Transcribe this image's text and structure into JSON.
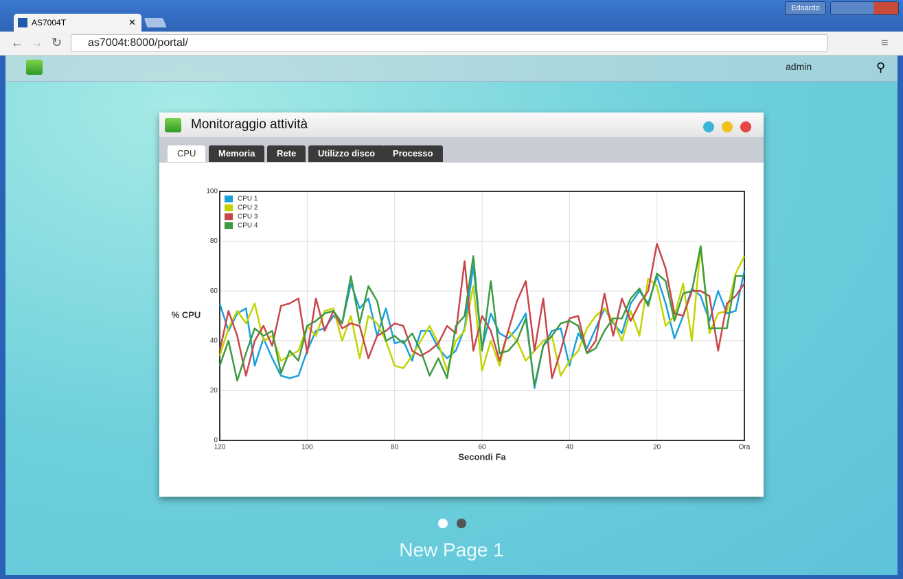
{
  "browser": {
    "tab_title": "AS7004T",
    "user": "Edoardo",
    "url": "as7004t:8000/portal/"
  },
  "portal": {
    "user": "admin",
    "page_title": "New Page 1"
  },
  "window": {
    "title": "Monitoraggio attività",
    "tabs": [
      "CPU",
      "Memoria",
      "Rete",
      "Utilizzo disco",
      "Processo"
    ]
  },
  "chart_data": {
    "type": "line",
    "x_label": "Secondi Fa",
    "y_label": "% CPU",
    "x": [
      120,
      118,
      116,
      114,
      112,
      110,
      108,
      106,
      104,
      102,
      100,
      98,
      96,
      94,
      92,
      90,
      88,
      86,
      84,
      82,
      80,
      78,
      76,
      74,
      72,
      70,
      68,
      66,
      64,
      62,
      60,
      58,
      56,
      54,
      52,
      50,
      48,
      46,
      44,
      42,
      40,
      38,
      36,
      34,
      32,
      30,
      28,
      26,
      24,
      22,
      20,
      18,
      16,
      14,
      12,
      10,
      8,
      6,
      4,
      2,
      0
    ],
    "xlim": [
      120,
      0
    ],
    "xticks": [
      120,
      100,
      80,
      60,
      40,
      20,
      {
        "value": 0,
        "label": "Ora"
      }
    ],
    "ylim": [
      0,
      100
    ],
    "yticks": [
      0,
      20,
      40,
      60,
      80,
      100
    ],
    "grid": true,
    "legend": "top-left",
    "series": [
      {
        "name": "CPU 1",
        "color": "#1aa0de",
        "values": [
          55,
          44,
          51,
          53,
          30,
          41,
          33,
          26,
          25,
          26,
          36,
          44,
          45,
          50,
          47,
          63,
          53,
          57,
          42,
          53,
          39,
          40,
          32,
          44,
          44,
          37,
          33,
          36,
          45,
          70,
          37,
          51,
          43,
          41,
          45,
          51,
          21,
          38,
          44,
          45,
          30,
          43,
          37,
          45,
          53,
          47,
          43,
          55,
          60,
          55,
          66,
          55,
          41,
          50,
          61,
          58,
          48,
          60,
          51,
          52,
          68
        ]
      },
      {
        "name": "CPU 2",
        "color": "#c3d400",
        "values": [
          34,
          45,
          52,
          47,
          55,
          40,
          42,
          32,
          34,
          36,
          46,
          42,
          52,
          53,
          40,
          50,
          33,
          50,
          47,
          40,
          30,
          29,
          34,
          40,
          46,
          39,
          28,
          40,
          44,
          62,
          28,
          40,
          30,
          44,
          40,
          32,
          36,
          40,
          42,
          26,
          32,
          36,
          45,
          50,
          53,
          48,
          40,
          52,
          42,
          65,
          62,
          46,
          50,
          63,
          40,
          78,
          43,
          51,
          52,
          67,
          74
        ]
      },
      {
        "name": "CPU 3",
        "color": "#c9464a",
        "values": [
          36,
          52,
          42,
          26,
          40,
          46,
          38,
          54,
          55,
          57,
          35,
          57,
          44,
          52,
          45,
          47,
          46,
          33,
          42,
          44,
          47,
          46,
          36,
          34,
          36,
          39,
          46,
          43,
          72,
          36,
          50,
          44,
          32,
          44,
          56,
          64,
          36,
          57,
          25,
          36,
          49,
          50,
          35,
          40,
          59,
          42,
          57,
          48,
          55,
          60,
          79,
          69,
          51,
          50,
          60,
          60,
          58,
          36,
          55,
          58,
          63
        ]
      },
      {
        "name": "CPU 4",
        "color": "#3e9b42",
        "values": [
          30,
          40,
          24,
          35,
          45,
          42,
          44,
          27,
          36,
          32,
          46,
          48,
          51,
          52,
          47,
          66,
          47,
          62,
          56,
          40,
          42,
          39,
          43,
          36,
          26,
          33,
          25,
          46,
          50,
          74,
          36,
          64,
          35,
          36,
          40,
          49,
          22,
          38,
          42,
          47,
          48,
          46,
          35,
          37,
          44,
          49,
          49,
          57,
          61,
          54,
          67,
          64,
          48,
          59,
          60,
          78,
          45,
          45,
          45,
          66,
          66
        ]
      }
    ]
  }
}
